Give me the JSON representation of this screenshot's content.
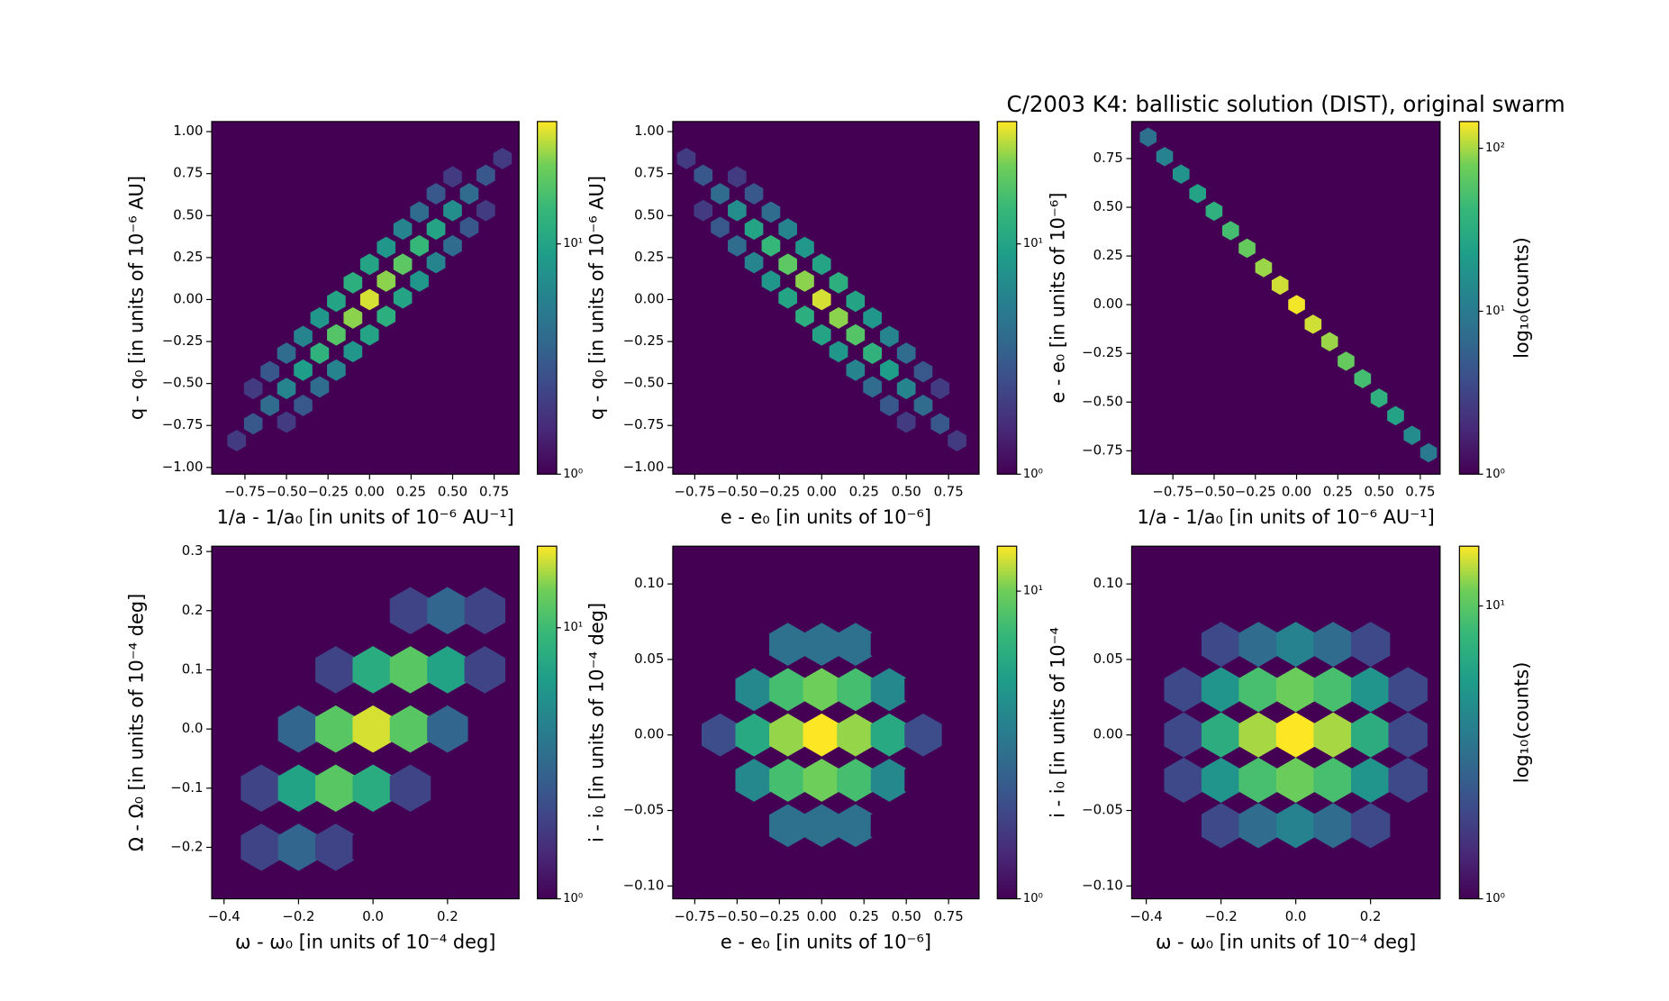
{
  "chart_data": [
    {
      "type": "hexbin",
      "colormap": "viridis",
      "log_color": true,
      "xlabel": "1/a - 1/a₀ [in units of 10⁻⁶ AU⁻¹]",
      "ylabel": "q - q₀ [in units of 10⁻⁶ AU]",
      "xlim": [
        -0.95,
        0.9
      ],
      "ylim": [
        -1.04,
        1.06
      ],
      "xticks": [
        {
          "value": -0.75,
          "label": "−0.75"
        },
        {
          "value": -0.5,
          "label": "−0.50"
        },
        {
          "value": -0.25,
          "label": "−0.25"
        },
        {
          "value": 0,
          "label": "0.00"
        },
        0.25,
        {
          "value": 0.5,
          "label": "0.50"
        },
        0.75
      ],
      "yticks": [
        {
          "value": -1,
          "label": "−1.00"
        },
        {
          "value": -0.75,
          "label": "−0.75"
        },
        {
          "value": -0.5,
          "label": "−0.50"
        },
        {
          "value": -0.25,
          "label": "−0.25"
        },
        {
          "value": 0,
          "label": "0.00"
        },
        0.25,
        {
          "value": 0.5,
          "label": "0.50"
        },
        0.75,
        {
          "value": 1,
          "label": "1.00"
        }
      ],
      "clim": [
        1,
        34
      ],
      "cticks": [
        {
          "value": 1,
          "label": "10⁰"
        },
        {
          "value": 10,
          "label": "10¹"
        }
      ],
      "x": [
        -0.8,
        -0.7,
        -0.6,
        -0.5,
        -0.4,
        -0.3,
        -0.2,
        -0.1,
        0,
        0.1,
        0.2,
        0.3,
        0.4,
        0.5,
        0.6,
        0.7,
        0.8,
        -0.5,
        -0.4,
        -0.3,
        -0.2,
        -0.1,
        0,
        0.1,
        0.2,
        0.3,
        0.4,
        0.5,
        0.6,
        0.7,
        -0.7,
        -0.6,
        -0.5,
        -0.4,
        -0.3,
        -0.2,
        -0.1,
        0,
        0.1,
        0.2,
        0.3,
        0.4,
        0.5
      ],
      "y": [
        -0.84,
        -0.74,
        -0.63,
        -0.53,
        -0.42,
        -0.32,
        -0.21,
        -0.11,
        0,
        0.11,
        0.21,
        0.32,
        0.42,
        0.53,
        0.63,
        0.74,
        0.84,
        -0.73,
        -0.63,
        -0.52,
        -0.42,
        -0.31,
        -0.21,
        -0.1,
        0.01,
        0.11,
        0.22,
        0.32,
        0.43,
        0.53,
        -0.53,
        -0.43,
        -0.32,
        -0.22,
        -0.11,
        -0.01,
        0.1,
        0.21,
        0.31,
        0.42,
        0.52,
        0.63,
        0.73
      ],
      "values": [
        2,
        3,
        4,
        6,
        9,
        13,
        18,
        24,
        30,
        24,
        19,
        14,
        10,
        7,
        4,
        3,
        2,
        2,
        3,
        4,
        6,
        8,
        10,
        12,
        10,
        8,
        6,
        4,
        3,
        2,
        2,
        3,
        4,
        6,
        8,
        10,
        12,
        10,
        8,
        6,
        4,
        3,
        2
      ]
    },
    {
      "type": "hexbin",
      "colormap": "viridis",
      "log_color": true,
      "xlabel": "e - e₀ [in units of 10⁻⁶]",
      "ylabel": "q - q₀ [in units of 10⁻⁶ AU]",
      "xlim": [
        -0.88,
        0.93
      ],
      "ylim": [
        -1.04,
        1.06
      ],
      "xticks": [
        {
          "value": -0.75,
          "label": "−0.75"
        },
        {
          "value": -0.5,
          "label": "−0.50"
        },
        {
          "value": -0.25,
          "label": "−0.25"
        },
        {
          "value": 0,
          "label": "0.00"
        },
        0.25,
        {
          "value": 0.5,
          "label": "0.50"
        },
        0.75
      ],
      "yticks": [
        {
          "value": -1,
          "label": "−1.00"
        },
        {
          "value": -0.75,
          "label": "−0.75"
        },
        {
          "value": -0.5,
          "label": "−0.50"
        },
        {
          "value": -0.25,
          "label": "−0.25"
        },
        {
          "value": 0,
          "label": "0.00"
        },
        0.25,
        {
          "value": 0.5,
          "label": "0.50"
        },
        0.75,
        {
          "value": 1,
          "label": "1.00"
        }
      ],
      "clim": [
        1,
        34
      ],
      "cticks": [
        {
          "value": 1,
          "label": "10⁰"
        },
        {
          "value": 10,
          "label": "10¹"
        }
      ],
      "x": [
        0.8,
        0.7,
        0.6,
        0.5,
        0.4,
        0.3,
        0.2,
        0.1,
        0,
        -0.1,
        -0.2,
        -0.3,
        -0.4,
        -0.5,
        -0.6,
        -0.7,
        -0.8,
        0.5,
        0.4,
        0.3,
        0.2,
        0.1,
        0,
        -0.1,
        -0.2,
        -0.3,
        -0.4,
        -0.5,
        -0.6,
        -0.7,
        0.7,
        0.6,
        0.5,
        0.4,
        0.3,
        0.2,
        0.1,
        0,
        -0.1,
        -0.2,
        -0.3,
        -0.4,
        -0.5
      ],
      "y": [
        -0.84,
        -0.74,
        -0.63,
        -0.53,
        -0.42,
        -0.32,
        -0.21,
        -0.11,
        0,
        0.11,
        0.21,
        0.32,
        0.42,
        0.53,
        0.63,
        0.74,
        0.84,
        -0.73,
        -0.63,
        -0.52,
        -0.42,
        -0.31,
        -0.21,
        -0.1,
        0.01,
        0.11,
        0.22,
        0.32,
        0.43,
        0.53,
        -0.53,
        -0.43,
        -0.32,
        -0.22,
        -0.11,
        -0.01,
        0.1,
        0.21,
        0.31,
        0.42,
        0.52,
        0.63,
        0.73
      ],
      "values": [
        2,
        3,
        4,
        6,
        9,
        13,
        18,
        24,
        30,
        24,
        19,
        14,
        10,
        7,
        4,
        3,
        2,
        2,
        3,
        4,
        6,
        8,
        10,
        12,
        10,
        8,
        6,
        4,
        3,
        2,
        2,
        3,
        4,
        6,
        8,
        10,
        12,
        10,
        8,
        6,
        4,
        3,
        2
      ]
    },
    {
      "type": "hexbin",
      "colormap": "viridis",
      "log_color": true,
      "title": "C/2003 K4:  ballistic solution (DIST), original swarm",
      "xlabel": "1/a - 1/a₀ [in units of 10⁻⁶ AU⁻¹]",
      "ylabel": "e - e₀ [in units of 10⁻⁶]",
      "colorbar_label": "log₁₀(counts)",
      "xlim": [
        -1.0,
        0.87
      ],
      "ylim": [
        -0.87,
        0.94
      ],
      "xticks": [
        {
          "value": -0.75,
          "label": "−0.75"
        },
        {
          "value": -0.5,
          "label": "−0.50"
        },
        {
          "value": -0.25,
          "label": "−0.25"
        },
        {
          "value": 0,
          "label": "0.00"
        },
        0.25,
        {
          "value": 0.5,
          "label": "0.50"
        },
        0.75
      ],
      "yticks": [
        {
          "value": -0.75,
          "label": "−0.75"
        },
        {
          "value": -0.5,
          "label": "−0.50"
        },
        {
          "value": -0.25,
          "label": "−0.25"
        },
        {
          "value": 0,
          "label": "0.00"
        },
        0.25,
        {
          "value": 0.5,
          "label": "0.50"
        },
        0.75
      ],
      "clim": [
        1,
        146
      ],
      "cticks": [
        {
          "value": 1,
          "label": "10⁰"
        },
        {
          "value": 10,
          "label": "10¹"
        },
        {
          "value": 100,
          "label": "10²"
        }
      ],
      "x": [
        -0.9,
        -0.8,
        -0.7,
        -0.6,
        -0.5,
        -0.4,
        -0.3,
        -0.2,
        -0.1,
        0,
        0.1,
        0.2,
        0.3,
        0.4,
        0.5,
        0.6,
        0.7,
        0.8
      ],
      "y": [
        0.86,
        0.76,
        0.67,
        0.57,
        0.48,
        0.38,
        0.29,
        0.19,
        0.1,
        0,
        -0.1,
        -0.19,
        -0.29,
        -0.38,
        -0.48,
        -0.57,
        -0.67,
        -0.76
      ],
      "values": [
        8,
        12,
        18,
        25,
        35,
        50,
        70,
        95,
        120,
        140,
        120,
        95,
        70,
        50,
        35,
        25,
        15,
        10
      ]
    },
    {
      "type": "hexbin",
      "colormap": "viridis",
      "log_color": true,
      "xlabel": "ω - ω₀ [in units of 10⁻⁴ deg]",
      "ylabel": "Ω - Ω₀ [in units of 10⁻⁴ deg]",
      "xlim": [
        -0.433,
        0.392
      ],
      "ylim": [
        -0.287,
        0.309
      ],
      "xticks": [
        {
          "value": -0.4,
          "label": "−0.4"
        },
        {
          "value": -0.2,
          "label": "−0.2"
        },
        {
          "value": 0,
          "label": "0.0"
        },
        0.2
      ],
      "yticks": [
        {
          "value": -0.2,
          "label": "−0.2"
        },
        {
          "value": -0.1,
          "label": "−0.1"
        },
        {
          "value": 0,
          "label": "0.0"
        },
        0.1,
        0.2,
        0.3
      ],
      "clim": [
        1,
        20
      ],
      "cticks": [
        {
          "value": 1,
          "label": "10⁰"
        },
        {
          "value": 10,
          "label": "10¹"
        }
      ],
      "x": [
        -0.3,
        -0.3,
        -0.2,
        -0.2,
        -0.2,
        -0.1,
        -0.1,
        -0.1,
        -0.1,
        0,
        0,
        0,
        0,
        0,
        0.1,
        0.1,
        0.1,
        0.1,
        0.2,
        0.2,
        0.2,
        0.3,
        0.3
      ],
      "y": [
        -0.2,
        -0.1,
        -0.2,
        -0.1,
        0,
        -0.2,
        -0.1,
        0,
        0.1,
        -0.2,
        -0.1,
        0,
        0.1,
        0.2,
        -0.1,
        0,
        0.1,
        0.2,
        0,
        0.1,
        0.2,
        0.1,
        0.2
      ],
      "values": [
        2,
        2,
        3,
        7,
        3,
        2,
        12,
        12,
        2,
        1,
        8,
        18,
        8,
        1,
        2,
        12,
        12,
        2,
        3,
        7,
        3,
        2,
        2
      ]
    },
    {
      "type": "hexbin",
      "colormap": "viridis",
      "log_color": true,
      "xlabel": "e - e₀ [in units of 10⁻⁶]",
      "ylabel": "i - i₀ [in units of 10⁻⁴ deg]",
      "xlim": [
        -0.88,
        0.93
      ],
      "ylim": [
        -0.1085,
        0.125
      ],
      "xticks": [
        {
          "value": -0.75,
          "label": "−0.75"
        },
        {
          "value": -0.5,
          "label": "−0.50"
        },
        {
          "value": -0.25,
          "label": "−0.25"
        },
        {
          "value": 0,
          "label": "0.00"
        },
        0.25,
        {
          "value": 0.5,
          "label": "0.50"
        },
        0.75
      ],
      "yticks": [
        {
          "value": -0.1,
          "label": "−0.10"
        },
        {
          "value": -0.05,
          "label": "−0.05"
        },
        {
          "value": 0,
          "label": "0.00"
        },
        0.05,
        {
          "value": 0.1,
          "label": "0.10"
        }
      ],
      "clim": [
        1,
        14
      ],
      "cticks": [
        {
          "value": 1,
          "label": "10⁰"
        },
        {
          "value": 10,
          "label": "10¹"
        }
      ],
      "x": [
        -0.6,
        -0.6,
        -0.6,
        -0.4,
        -0.4,
        -0.4,
        -0.4,
        -0.4,
        -0.2,
        -0.2,
        -0.2,
        -0.2,
        -0.2,
        0,
        0,
        0,
        0,
        0,
        0.2,
        0.2,
        0.2,
        0.2,
        0.2,
        0.4,
        0.4,
        0.4,
        0.4,
        0.4,
        0.6,
        0.6,
        0.6
      ],
      "y": [
        -0.03,
        0,
        0.03,
        -0.06,
        -0.03,
        0,
        0.03,
        0.06,
        -0.06,
        -0.03,
        0,
        0.03,
        0.06,
        -0.06,
        -0.03,
        0,
        0.03,
        0.06,
        -0.06,
        -0.03,
        0,
        0.03,
        0.06,
        -0.06,
        -0.03,
        0,
        0.03,
        0.06,
        -0.03,
        0,
        0.03
      ],
      "values": [
        1,
        2,
        1,
        1,
        4,
        6,
        4,
        1,
        3,
        8,
        11,
        8,
        3,
        3,
        10,
        14,
        10,
        3,
        3,
        8,
        11,
        8,
        3,
        1,
        4,
        6,
        4,
        1,
        1,
        2,
        1
      ]
    },
    {
      "type": "hexbin",
      "colormap": "viridis",
      "log_color": true,
      "xlabel": "ω - ω₀ [in units of 10⁻⁴ deg]",
      "ylabel": "i - i₀ [in units of 10⁻⁴",
      "colorbar_label": "log₁₀(counts)",
      "xlim": [
        -0.439,
        0.386
      ],
      "ylim": [
        -0.1085,
        0.125
      ],
      "xticks": [
        {
          "value": -0.4,
          "label": "−0.4"
        },
        {
          "value": -0.2,
          "label": "−0.2"
        },
        {
          "value": 0,
          "label": "0.0"
        },
        0.2
      ],
      "yticks": [
        {
          "value": -0.1,
          "label": "−0.10"
        },
        {
          "value": -0.05,
          "label": "−0.05"
        },
        {
          "value": 0,
          "label": "0.00"
        },
        0.05,
        {
          "value": 0.1,
          "label": "0.10"
        }
      ],
      "clim": [
        1,
        16
      ],
      "cticks": [
        {
          "value": 1,
          "label": "10⁰"
        },
        {
          "value": 10,
          "label": "10¹"
        }
      ],
      "x": [
        -0.3,
        -0.3,
        -0.3,
        -0.2,
        -0.2,
        -0.2,
        -0.2,
        -0.2,
        -0.1,
        -0.1,
        -0.1,
        -0.1,
        -0.1,
        0,
        0,
        0,
        0,
        0,
        0.1,
        0.1,
        0.1,
        0.1,
        0.1,
        0.2,
        0.2,
        0.2,
        0.2,
        0.2,
        0.3,
        0.3,
        0.3
      ],
      "y": [
        -0.03,
        0,
        0.03,
        -0.06,
        -0.03,
        0,
        0.03,
        0.06,
        -0.06,
        -0.03,
        0,
        0.03,
        0.06,
        -0.06,
        -0.03,
        0,
        0.03,
        0.06,
        -0.06,
        -0.03,
        0,
        0.03,
        0.06,
        -0.06,
        -0.03,
        0,
        0.03,
        0.06,
        -0.03,
        0,
        0.03
      ],
      "values": [
        2,
        2,
        2,
        2,
        5,
        7,
        5,
        2,
        3,
        9,
        13,
        9,
        3,
        4,
        11,
        16,
        11,
        4,
        3,
        9,
        13,
        9,
        3,
        2,
        5,
        7,
        5,
        2,
        2,
        2,
        2
      ]
    }
  ]
}
